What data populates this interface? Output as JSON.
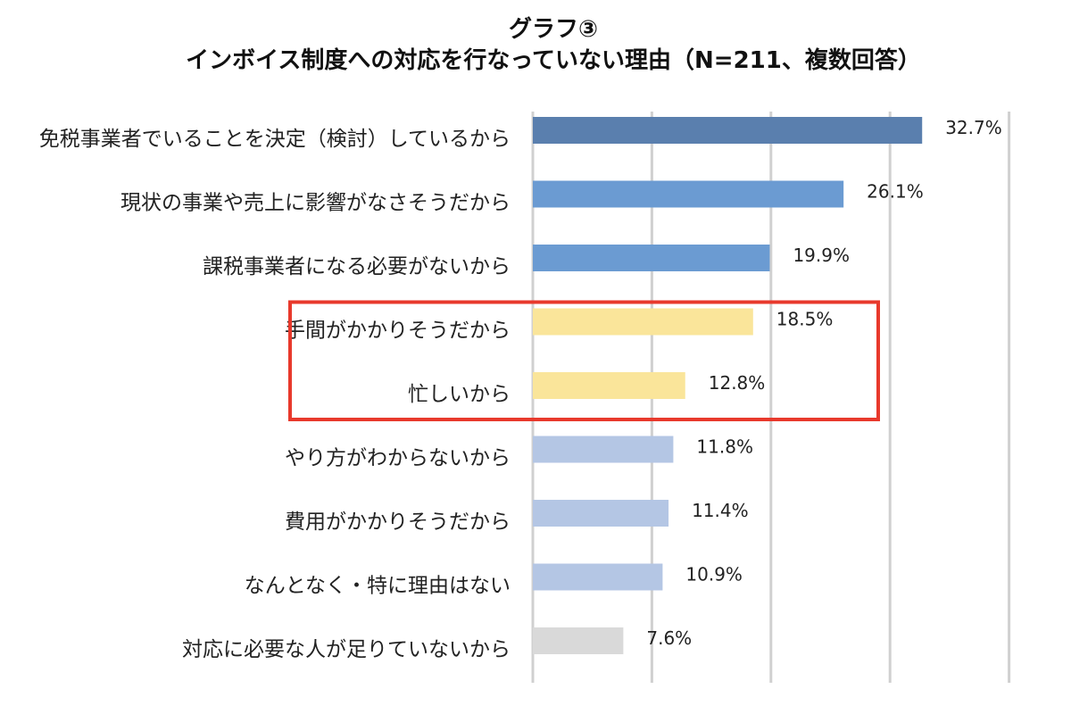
{
  "chart_data": {
    "type": "bar",
    "orientation": "horizontal",
    "title": "グラフ③",
    "subtitle": "インボイス制度への対応を行なっていない理由（N=211、複数回答）",
    "categories": [
      "免税事業者でいることを決定（検討）しているから",
      "現状の事業や売上に影響がなさそうだから",
      "課税事業者になる必要がないから",
      "手間がかかりそうだから",
      "忙しいから",
      "やり方がわからないから",
      "費用がかかりそうだから",
      "なんとなく・特に理由はない",
      "対応に必要な人が足りていないから"
    ],
    "values": [
      32.7,
      26.1,
      19.9,
      18.5,
      12.8,
      11.8,
      11.4,
      10.9,
      7.6
    ],
    "value_labels": [
      "32.7%",
      "26.1%",
      "19.9%",
      "18.5%",
      "12.8%",
      "11.8%",
      "11.4%",
      "10.9%",
      "7.6%"
    ],
    "bar_colors": [
      "#5a7fae",
      "#6b9bd2",
      "#6b9bd2",
      "#fae59a",
      "#fae59a",
      "#b4c6e4",
      "#b4c6e4",
      "#b4c6e4",
      "#d9d9d9"
    ],
    "xlim": [
      0,
      40
    ],
    "grid": true,
    "highlight": {
      "categories": [
        "手間がかかりそうだから",
        "忙しいから"
      ],
      "color": "#e8392c"
    }
  }
}
